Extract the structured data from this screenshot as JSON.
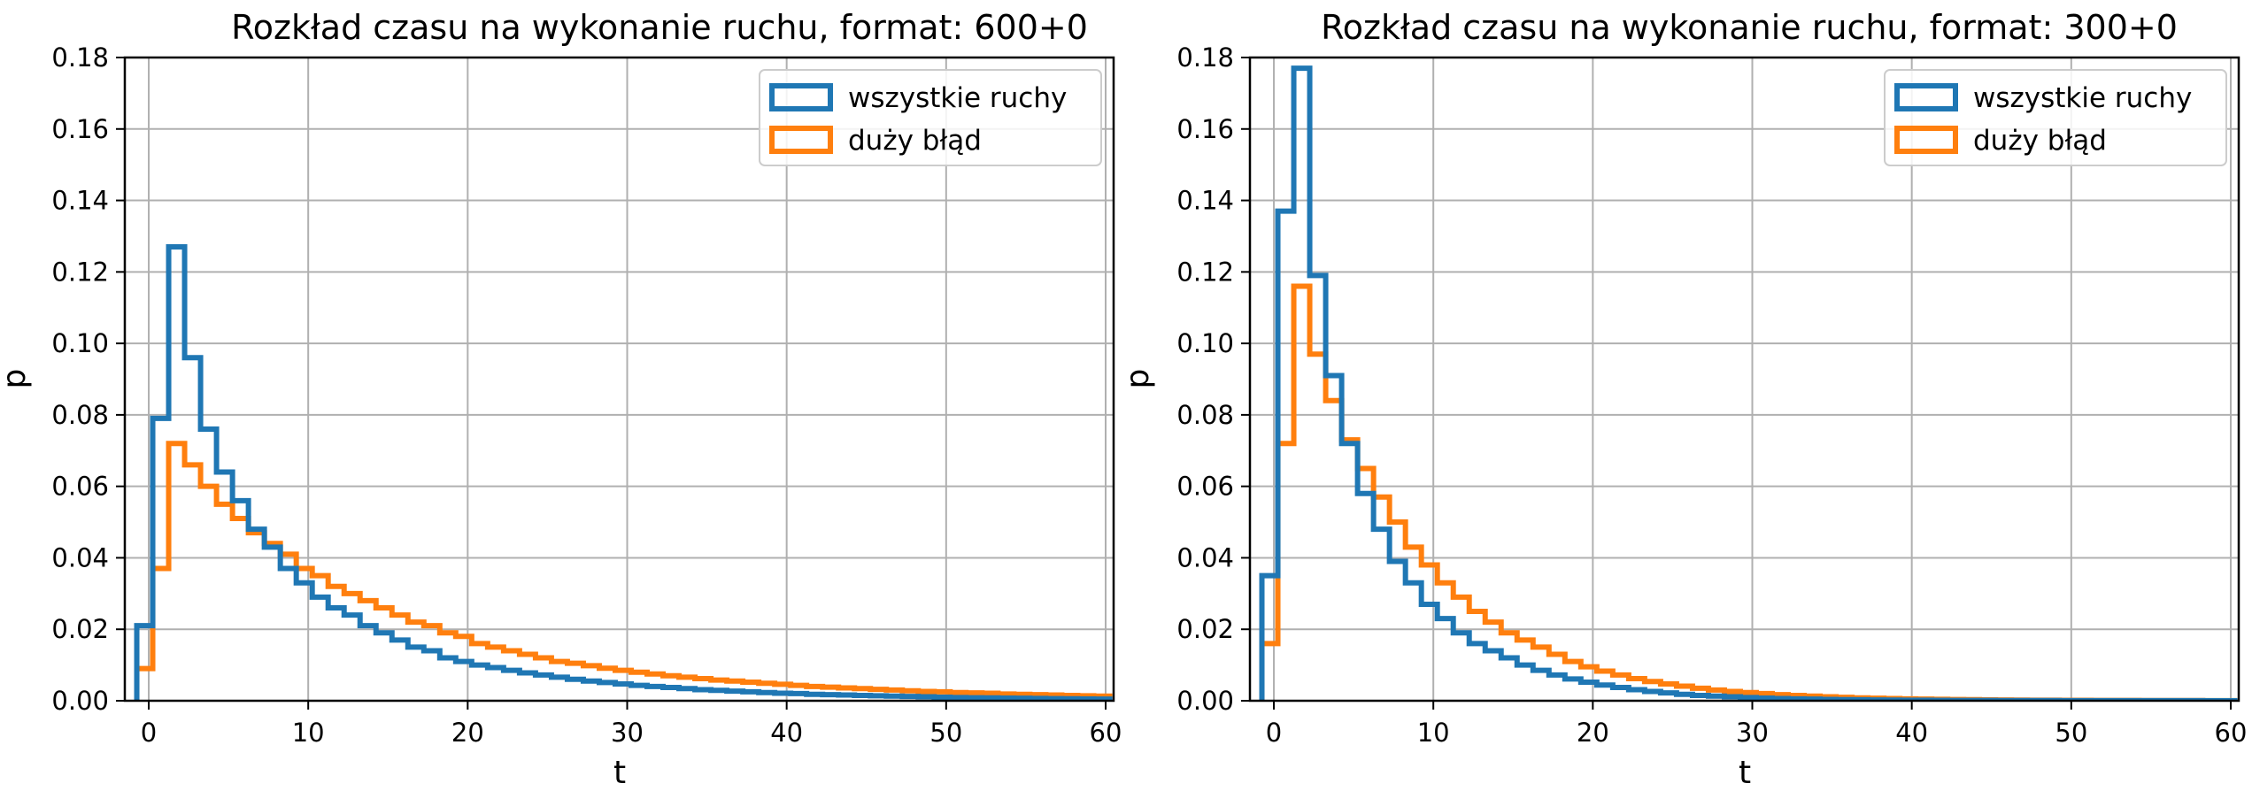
{
  "chart_data": [
    {
      "type": "step-histogram",
      "title": "Rozkład czasu na wykonanie ruchu, format: 600+0",
      "xlabel": "t",
      "ylabel": "p",
      "xlim": [
        -1.5,
        60.5
      ],
      "ylim": [
        0,
        0.18
      ],
      "xticks": [
        "0",
        "10",
        "20",
        "30",
        "40",
        "50",
        "60"
      ],
      "yticks": [
        "0.00",
        "0.02",
        "0.04",
        "0.06",
        "0.08",
        "0.10",
        "0.12",
        "0.14",
        "0.16",
        "0.18"
      ],
      "grid": true,
      "legend_position": "top-right",
      "bin_edges": [
        -0.75,
        0.25,
        1.25,
        2.25,
        3.25,
        4.25,
        5.25,
        6.25,
        7.25,
        8.25,
        9.25,
        10.25,
        11.25,
        12.25,
        13.25,
        14.25,
        15.25,
        16.25,
        17.25,
        18.25,
        19.25,
        20.25,
        21.25,
        22.25,
        23.25,
        24.25,
        25.25,
        26.25,
        27.25,
        28.25,
        29.25,
        30.25,
        31.25,
        32.25,
        33.25,
        34.25,
        35.25,
        36.25,
        37.25,
        38.25,
        39.25,
        40.25,
        41.25,
        42.25,
        43.25,
        44.25,
        45.25,
        46.25,
        47.25,
        48.25,
        49.25,
        50.25,
        51.25,
        52.25,
        53.25,
        54.25,
        55.25,
        56.25,
        57.25,
        58.25,
        59.25,
        60.25
      ],
      "series": [
        {
          "name": "wszystkie ruchy",
          "color": "#1f77b4",
          "values": [
            0.021,
            0.079,
            0.127,
            0.096,
            0.076,
            0.064,
            0.056,
            0.048,
            0.043,
            0.037,
            0.033,
            0.029,
            0.026,
            0.024,
            0.021,
            0.019,
            0.017,
            0.015,
            0.014,
            0.012,
            0.011,
            0.01,
            0.0093,
            0.0085,
            0.0078,
            0.0072,
            0.0066,
            0.006,
            0.0055,
            0.0051,
            0.0047,
            0.0043,
            0.004,
            0.0037,
            0.0034,
            0.0031,
            0.0029,
            0.0027,
            0.0025,
            0.0023,
            0.0021,
            0.002,
            0.0018,
            0.0017,
            0.0016,
            0.0015,
            0.0014,
            0.0013,
            0.0012,
            0.0011,
            0.001,
            0.0009,
            0.00085,
            0.0008,
            0.00075,
            0.0007,
            0.00065,
            0.0006,
            0.00055,
            0.0005,
            0.00045
          ]
        },
        {
          "name": "duży błąd",
          "color": "#ff7f0e",
          "values": [
            0.009,
            0.037,
            0.072,
            0.066,
            0.06,
            0.055,
            0.051,
            0.047,
            0.044,
            0.041,
            0.037,
            0.035,
            0.032,
            0.03,
            0.028,
            0.026,
            0.024,
            0.022,
            0.021,
            0.019,
            0.018,
            0.016,
            0.015,
            0.014,
            0.013,
            0.012,
            0.011,
            0.0105,
            0.0098,
            0.0091,
            0.0085,
            0.008,
            0.0075,
            0.007,
            0.0066,
            0.0062,
            0.0058,
            0.0055,
            0.0052,
            0.0049,
            0.0046,
            0.0043,
            0.004,
            0.0038,
            0.0036,
            0.0034,
            0.0032,
            0.003,
            0.0028,
            0.0026,
            0.0025,
            0.0023,
            0.0022,
            0.0021,
            0.0019,
            0.0018,
            0.0017,
            0.0016,
            0.0015,
            0.0014,
            0.0013
          ]
        }
      ]
    },
    {
      "type": "step-histogram",
      "title": "Rozkład czasu na wykonanie ruchu, format: 300+0",
      "xlabel": "t",
      "ylabel": "p",
      "xlim": [
        -1.5,
        60.5
      ],
      "ylim": [
        0,
        0.18
      ],
      "xticks": [
        "0",
        "10",
        "20",
        "30",
        "40",
        "50",
        "60"
      ],
      "yticks": [
        "0.00",
        "0.02",
        "0.04",
        "0.06",
        "0.08",
        "0.10",
        "0.12",
        "0.14",
        "0.16",
        "0.18"
      ],
      "grid": true,
      "legend_position": "top-right",
      "bin_edges": [
        -0.75,
        0.25,
        1.25,
        2.25,
        3.25,
        4.25,
        5.25,
        6.25,
        7.25,
        8.25,
        9.25,
        10.25,
        11.25,
        12.25,
        13.25,
        14.25,
        15.25,
        16.25,
        17.25,
        18.25,
        19.25,
        20.25,
        21.25,
        22.25,
        23.25,
        24.25,
        25.25,
        26.25,
        27.25,
        28.25,
        29.25,
        30.25,
        31.25,
        32.25,
        33.25,
        34.25,
        35.25,
        36.25,
        37.25,
        38.25,
        39.25,
        40.25,
        41.25,
        42.25,
        43.25,
        44.25,
        45.25,
        46.25,
        47.25,
        48.25,
        49.25,
        50.25,
        51.25,
        52.25,
        53.25,
        54.25,
        55.25,
        56.25,
        57.25,
        58.25,
        59.25,
        60.25
      ],
      "series": [
        {
          "name": "wszystkie ruchy",
          "color": "#1f77b4",
          "values": [
            0.035,
            0.137,
            0.177,
            0.119,
            0.091,
            0.072,
            0.058,
            0.048,
            0.039,
            0.033,
            0.027,
            0.023,
            0.019,
            0.016,
            0.014,
            0.012,
            0.01,
            0.0085,
            0.0072,
            0.0061,
            0.0052,
            0.0044,
            0.0037,
            0.0031,
            0.0026,
            0.0022,
            0.0018,
            0.0015,
            0.0013,
            0.0011,
            0.0009,
            0.00075,
            0.00063,
            0.00053,
            0.00045,
            0.00038,
            0.00032,
            0.00027,
            0.00023,
            0.0002,
            0.00017,
            0.00014,
            0.00012,
            0.0001,
            9e-05,
            8e-05,
            7e-05,
            6e-05,
            5e-05,
            5e-05,
            4e-05,
            4e-05,
            3e-05,
            3e-05,
            3e-05,
            2e-05,
            2e-05,
            2e-05,
            2e-05,
            1e-05,
            1e-05
          ]
        },
        {
          "name": "duży błąd",
          "color": "#ff7f0e",
          "values": [
            0.016,
            0.072,
            0.116,
            0.097,
            0.084,
            0.073,
            0.065,
            0.057,
            0.05,
            0.043,
            0.038,
            0.033,
            0.029,
            0.025,
            0.022,
            0.019,
            0.017,
            0.015,
            0.013,
            0.011,
            0.0095,
            0.0083,
            0.0072,
            0.0062,
            0.0054,
            0.0047,
            0.0041,
            0.0035,
            0.003,
            0.0026,
            0.0023,
            0.002,
            0.0017,
            0.0015,
            0.0013,
            0.0011,
            0.00095,
            0.00082,
            0.00071,
            0.00061,
            0.00053,
            0.00046,
            0.0004,
            0.00035,
            0.0003,
            0.00026,
            0.00023,
            0.0002,
            0.00017,
            0.00015,
            0.00013,
            0.00011,
            0.0001,
            9e-05,
            8e-05,
            7e-05,
            6e-05,
            5e-05,
            5e-05,
            4e-05,
            4e-05
          ]
        }
      ]
    }
  ]
}
